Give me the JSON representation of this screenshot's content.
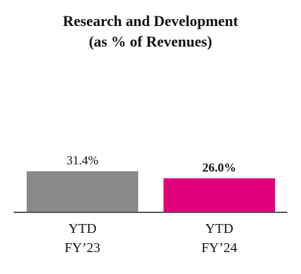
{
  "chart_data": {
    "type": "bar",
    "title": "Research and Development",
    "subtitle": "(as % of Revenues)",
    "categories": [
      [
        "YTD",
        "FY’23"
      ],
      [
        "YTD",
        "FY’24"
      ]
    ],
    "values": [
      31.4,
      26.0
    ],
    "data_labels": [
      "31.4%",
      "26.0%"
    ],
    "bold_labels": [
      false,
      true
    ],
    "colors": [
      "#8a8a8a",
      "#e2007a"
    ],
    "axis_color": "#555555",
    "ylim": [
      0,
      31.4
    ],
    "grid": false,
    "legend": "none"
  }
}
